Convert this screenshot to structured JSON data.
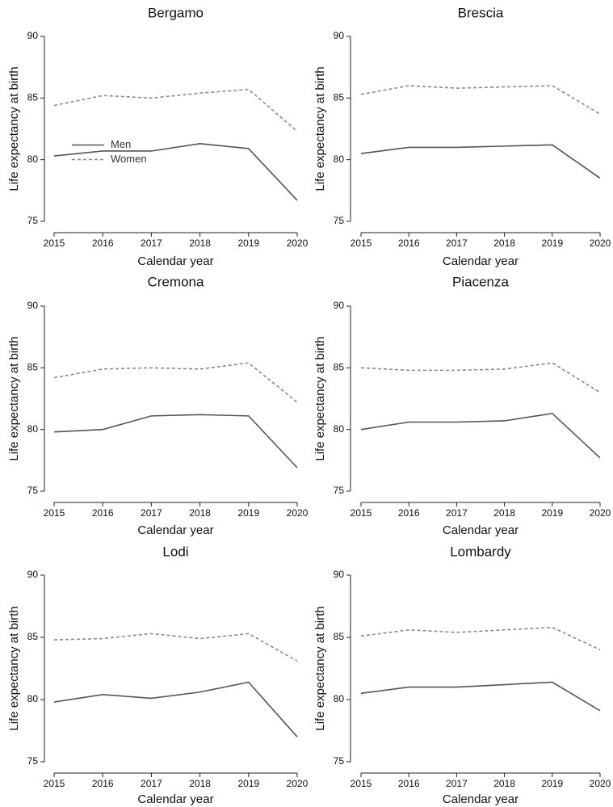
{
  "chart_data": [
    {
      "type": "line",
      "title": "Bergamo",
      "xlabel": "Calendar year",
      "ylabel": "Life expectancy at birth",
      "x": [
        2015,
        2016,
        2017,
        2018,
        2019,
        2020
      ],
      "xlim": [
        2015,
        2020
      ],
      "xticks": [
        2015,
        2016,
        2017,
        2018,
        2019,
        2020
      ],
      "ylim": [
        75,
        90
      ],
      "yticks": [
        75,
        80,
        85,
        90
      ],
      "legend": "middle left",
      "series": [
        {
          "name": "Men",
          "color": "#555555",
          "dash": "solid",
          "values": [
            80.3,
            80.7,
            80.7,
            81.3,
            80.9,
            76.7
          ]
        },
        {
          "name": "Women",
          "color": "#8a8a8a",
          "dash": "dashed",
          "values": [
            84.4,
            85.2,
            85.0,
            85.4,
            85.7,
            82.3
          ]
        }
      ]
    },
    {
      "type": "line",
      "title": "Brescia",
      "xlabel": "Calendar year",
      "ylabel": "Life expectancy at birth",
      "x": [
        2015,
        2016,
        2017,
        2018,
        2019,
        2020
      ],
      "xlim": [
        2015,
        2020
      ],
      "xticks": [
        2015,
        2016,
        2017,
        2018,
        2019,
        2020
      ],
      "ylim": [
        75,
        90
      ],
      "yticks": [
        75,
        80,
        85,
        90
      ],
      "series": [
        {
          "color": "#555555",
          "dash": "solid",
          "values": [
            80.5,
            81.0,
            81.0,
            81.1,
            81.2,
            78.5
          ]
        },
        {
          "color": "#8a8a8a",
          "dash": "dashed",
          "values": [
            85.3,
            86.0,
            85.8,
            85.9,
            86.0,
            83.7
          ]
        }
      ]
    },
    {
      "type": "line",
      "title": "Cremona",
      "xlabel": "Calendar year",
      "ylabel": "Life expectancy at birth",
      "x": [
        2015,
        2016,
        2017,
        2018,
        2019,
        2020
      ],
      "xlim": [
        2015,
        2020
      ],
      "xticks": [
        2015,
        2016,
        2017,
        2018,
        2019,
        2020
      ],
      "ylim": [
        75,
        90
      ],
      "yticks": [
        75,
        80,
        85,
        90
      ],
      "series": [
        {
          "color": "#555555",
          "dash": "solid",
          "values": [
            79.8,
            80.0,
            81.1,
            81.2,
            81.1,
            76.9
          ]
        },
        {
          "color": "#8a8a8a",
          "dash": "dashed",
          "values": [
            84.2,
            84.9,
            85.0,
            84.9,
            85.4,
            82.2
          ]
        }
      ]
    },
    {
      "type": "line",
      "title": "Piacenza",
      "xlabel": "Calendar year",
      "ylabel": "Life expectancy at birth",
      "x": [
        2015,
        2016,
        2017,
        2018,
        2019,
        2020
      ],
      "xlim": [
        2015,
        2020
      ],
      "xticks": [
        2015,
        2016,
        2017,
        2018,
        2019,
        2020
      ],
      "ylim": [
        75,
        90
      ],
      "yticks": [
        75,
        80,
        85,
        90
      ],
      "series": [
        {
          "color": "#555555",
          "dash": "solid",
          "values": [
            80.0,
            80.6,
            80.6,
            80.7,
            81.3,
            77.7
          ]
        },
        {
          "color": "#8a8a8a",
          "dash": "dashed",
          "values": [
            85.0,
            84.8,
            84.8,
            84.9,
            85.4,
            83.0
          ]
        }
      ]
    },
    {
      "type": "line",
      "title": "Lodi",
      "xlabel": "Calendar year",
      "ylabel": "Life expectancy at birth",
      "x": [
        2015,
        2016,
        2017,
        2018,
        2019,
        2020
      ],
      "xlim": [
        2015,
        2020
      ],
      "xticks": [
        2015,
        2016,
        2017,
        2018,
        2019,
        2020
      ],
      "ylim": [
        75,
        90
      ],
      "yticks": [
        75,
        80,
        85,
        90
      ],
      "series": [
        {
          "color": "#555555",
          "dash": "solid",
          "values": [
            79.8,
            80.4,
            80.1,
            80.6,
            81.4,
            77.0
          ]
        },
        {
          "color": "#8a8a8a",
          "dash": "dashed",
          "values": [
            84.8,
            84.9,
            85.3,
            84.9,
            85.3,
            83.1
          ]
        }
      ]
    },
    {
      "type": "line",
      "title": "Lombardy",
      "xlabel": "Calendar year",
      "ylabel": "Life expectancy at birth",
      "x": [
        2015,
        2016,
        2017,
        2018,
        2019,
        2020
      ],
      "xlim": [
        2015,
        2020
      ],
      "xticks": [
        2015,
        2016,
        2017,
        2018,
        2019,
        2020
      ],
      "ylim": [
        75,
        90
      ],
      "yticks": [
        75,
        80,
        85,
        90
      ],
      "series": [
        {
          "color": "#555555",
          "dash": "solid",
          "values": [
            80.5,
            81.0,
            81.0,
            81.2,
            81.4,
            79.1
          ]
        },
        {
          "color": "#8a8a8a",
          "dash": "dashed",
          "values": [
            85.1,
            85.6,
            85.4,
            85.6,
            85.8,
            84.0
          ]
        }
      ]
    }
  ]
}
